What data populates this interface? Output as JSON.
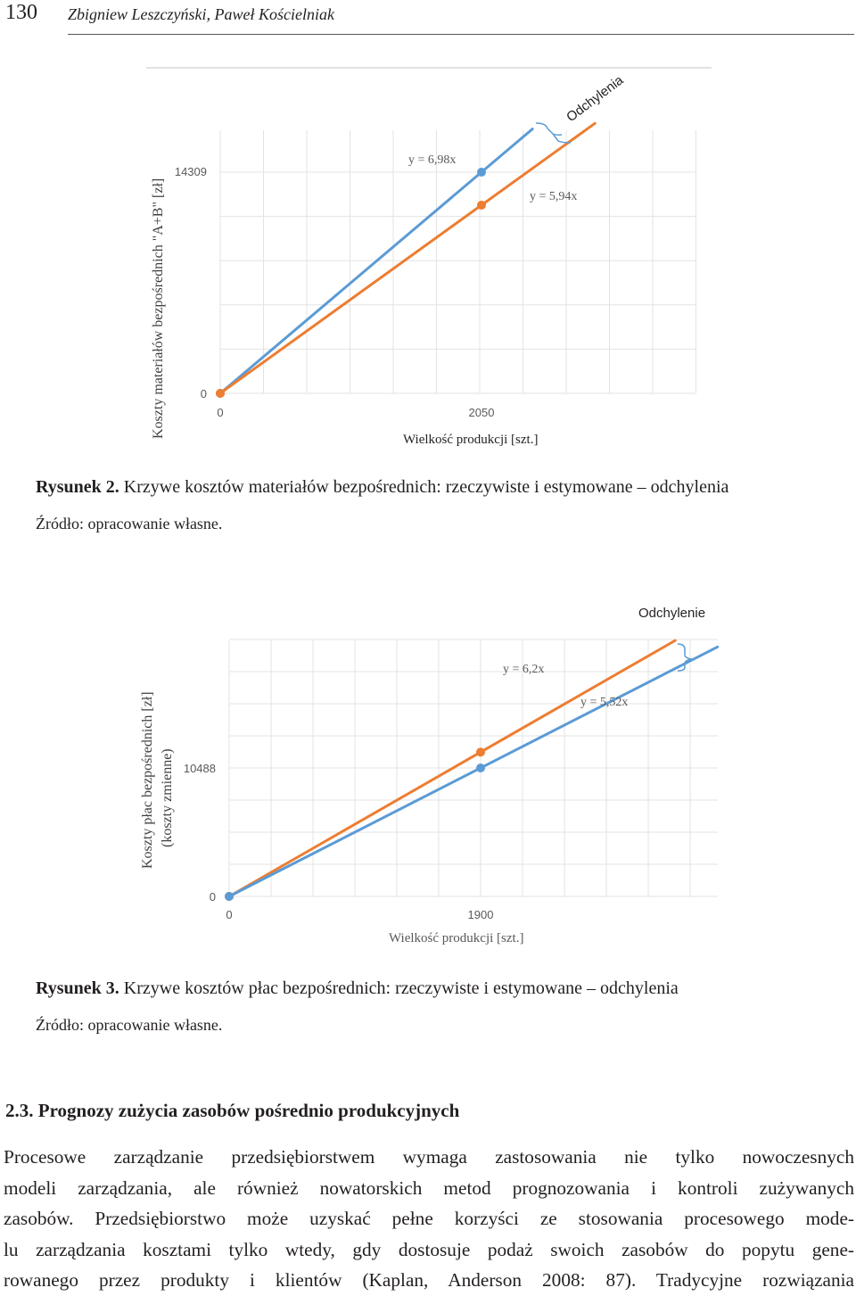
{
  "header": {
    "page_number": "130",
    "authors": "Zbigniew Leszczyński, Paweł Kościelniak"
  },
  "figure2": {
    "caption_label": "Rysunek 2.",
    "caption_text": " Krzywe kosztów materiałów bezpośrednich: rzeczywiste i estymowane – odchylenia",
    "source": "Źródło: opracowanie własne.",
    "chart_data": {
      "type": "line",
      "xlabel": "Wielkość produkcji  [szt.]",
      "ylabel": "Koszty materiałów bezpośrednich \"A+B\" [zł]",
      "x_ticks": [
        "0",
        "2050"
      ],
      "y_ticks": [
        "0",
        "14309"
      ],
      "series": [
        {
          "name": "y = 6,98x",
          "slope": 6.98,
          "x": [
            0,
            2050
          ],
          "y": [
            0,
            14309
          ],
          "color": "#5b9bd5"
        },
        {
          "name": "y = 5,94x",
          "slope": 5.94,
          "x": [
            0,
            2050
          ],
          "y": [
            0,
            12177
          ],
          "color": "#ed7d31"
        }
      ],
      "annotation": "Odchylenia",
      "grid": true
    }
  },
  "figure3": {
    "caption_label": "Rysunek 3.",
    "caption_text": " Krzywe kosztów płac bezpośrednich: rzeczywiste i estymowane – odchylenia",
    "source": "Źródło: opracowanie własne.",
    "chart_data": {
      "type": "line",
      "xlabel": "Wielkość produkcji  [szt.]",
      "ylabel": "Koszty płac bezpośrednich [zł]",
      "ylabel2": "(koszty zmienne)",
      "x_ticks": [
        "0",
        "1900"
      ],
      "y_ticks": [
        "0",
        "10488"
      ],
      "series": [
        {
          "name": "y = 6,2x",
          "slope": 6.2,
          "x": [
            0,
            1900
          ],
          "y": [
            0,
            11780
          ],
          "color": "#ed7d31"
        },
        {
          "name": "y = 5,52x",
          "slope": 5.52,
          "x": [
            0,
            1900
          ],
          "y": [
            0,
            10488
          ],
          "color": "#5b9bd5"
        }
      ],
      "annotation": "Odchylenie",
      "grid": true
    }
  },
  "section": {
    "title": "2.3. Prognozy zużycia zasobów pośrednio produkcyjnych"
  },
  "body": {
    "lines": [
      "Procesowe zarządzanie przedsiębiorstwem wymaga zastosowania nie tylko nowoczesnych",
      "modeli zarządzania, ale również nowatorskich metod prognozowania i kontroli zużywanych",
      "zasobów. Przedsiębiorstwo może uzyskać pełne korzyści ze stosowania procesowego mode-",
      "lu zarządzania kosztami tylko wtedy, gdy dostosuje podaż swoich zasobów do popytu gene-",
      "rowanego przez produkty i klientów (Kaplan, Anderson 2008: 87). Tradycyjne rozwiązania"
    ]
  }
}
